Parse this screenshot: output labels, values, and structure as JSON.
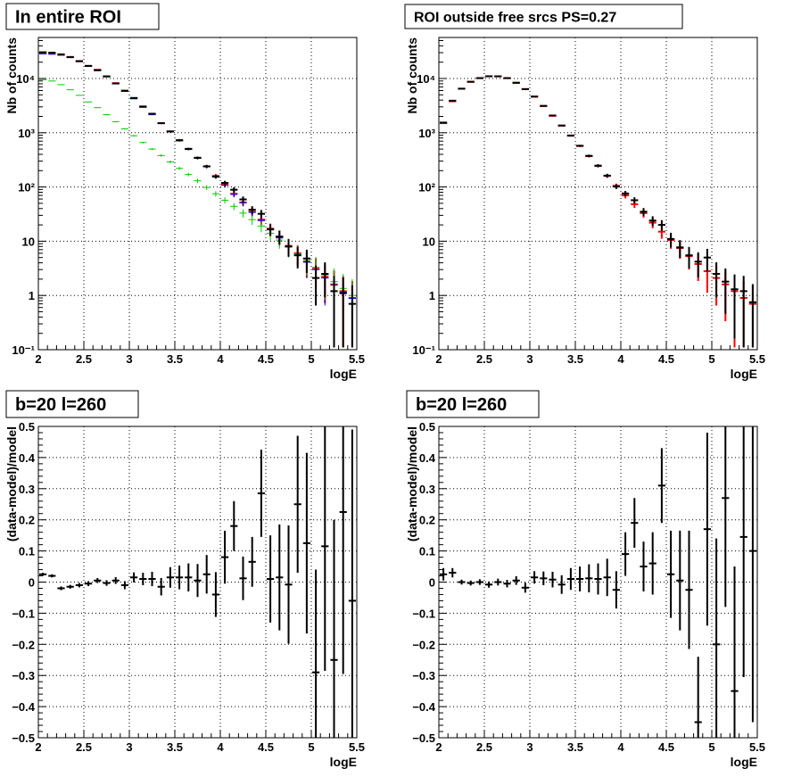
{
  "chart_data": [
    {
      "type": "scatter",
      "title": "In entire ROI",
      "xlabel": "logE",
      "ylabel": "Nb of counts",
      "xlim": [
        2,
        5.5
      ],
      "ylim": [
        0.1,
        60000
      ],
      "yscale": "log",
      "x_ticks": [
        "2",
        "2.5",
        "3",
        "3.5",
        "4",
        "4.5",
        "5",
        "5.5"
      ],
      "y_ticks": [
        "10⁻¹",
        "1",
        "10",
        "10²",
        "10³",
        "10⁴"
      ],
      "grid": true,
      "series": [
        {
          "color": "#ff0000",
          "x": [
            2.05,
            2.15,
            2.25,
            2.35,
            2.45,
            2.55,
            2.65,
            2.75,
            2.85,
            2.95,
            3.05,
            3.15,
            3.25,
            3.35,
            3.45,
            3.55,
            3.65,
            3.75,
            3.85,
            3.95,
            4.05,
            4.15,
            4.25,
            4.35,
            4.45,
            4.55,
            4.65,
            4.75,
            4.85,
            4.95,
            5.05,
            5.15,
            5.25,
            5.35,
            5.45
          ],
          "y": [
            30000,
            29000,
            28000,
            25000,
            21000,
            17000,
            14500,
            11000,
            8200,
            6000,
            4300,
            3000,
            2200,
            1500,
            1050,
            720,
            500,
            345,
            240,
            160,
            110,
            75,
            52,
            35,
            25,
            17,
            12,
            8.2,
            6,
            4.2,
            3.1,
            2.2,
            1.6,
            1.2,
            0.9
          ]
        },
        {
          "color": "#0000ff",
          "x": [
            2.05,
            2.15,
            2.25,
            2.35,
            2.45,
            2.55,
            2.65,
            2.75,
            2.85,
            2.95,
            3.05,
            3.15,
            3.25,
            3.35,
            3.45,
            3.55,
            3.65,
            3.75,
            3.85,
            3.95,
            4.05,
            4.15,
            4.25,
            4.35,
            4.45,
            4.55,
            4.65,
            4.75,
            4.85,
            4.95,
            5.05,
            5.15,
            5.25,
            5.35,
            5.45
          ],
          "y": [
            28500,
            28000,
            27000,
            24500,
            20500,
            16800,
            14000,
            10800,
            8000,
            5900,
            4250,
            2950,
            2150,
            1480,
            1040,
            710,
            495,
            340,
            235,
            158,
            108,
            73,
            51,
            34,
            24,
            16.5,
            11.5,
            8,
            5.8,
            4.1,
            3,
            2.1,
            1.55,
            1.15,
            0.88
          ]
        },
        {
          "color": "#00cc00",
          "x": [
            2.05,
            2.15,
            2.25,
            2.35,
            2.45,
            2.55,
            2.65,
            2.75,
            2.85,
            2.95,
            3.05,
            3.15,
            3.25,
            3.35,
            3.45,
            3.55,
            3.65,
            3.75,
            3.85,
            3.95,
            4.05,
            4.15,
            4.25,
            4.35,
            4.45,
            4.55,
            4.65,
            4.75,
            4.85,
            4.95,
            5.05,
            5.15,
            5.25,
            5.35,
            5.45
          ],
          "y": [
            9500,
            9000,
            7700,
            6200,
            4900,
            3700,
            2900,
            2150,
            1600,
            1180,
            880,
            660,
            500,
            380,
            290,
            220,
            170,
            130,
            98,
            75,
            57,
            44,
            33,
            25,
            19,
            14,
            10.5,
            7.8,
            5.9,
            4.4,
            3.3,
            2.4,
            1.8,
            1.35,
            1
          ]
        },
        {
          "color": "#000000",
          "x": [
            2.05,
            2.15,
            2.25,
            2.35,
            2.45,
            2.55,
            2.65,
            2.75,
            2.85,
            2.95,
            3.05,
            3.15,
            3.25,
            3.35,
            3.45,
            3.55,
            3.65,
            3.75,
            3.85,
            3.95,
            4.05,
            4.15,
            4.25,
            4.35,
            4.45,
            4.55,
            4.65,
            4.75,
            4.85,
            4.95,
            5.05,
            5.15,
            5.25,
            5.35,
            5.45
          ],
          "y": [
            30500,
            30000,
            27500,
            24700,
            20800,
            17100,
            14200,
            10900,
            8100,
            5900,
            4380,
            3050,
            2240,
            1500,
            1060,
            730,
            505,
            345,
            240,
            155,
            119,
            89,
            59,
            38,
            32,
            16.5,
            12.2,
            8,
            5.5,
            4.8,
            2.1,
            2.5,
            1.2,
            1.1,
            0.7
          ]
        }
      ]
    },
    {
      "type": "scatter",
      "title": "ROI outside free srcs PS=0.27",
      "xlabel": "logE",
      "ylabel": "Nb of counts",
      "xlim": [
        2,
        5.5
      ],
      "ylim": [
        0.1,
        60000
      ],
      "yscale": "log",
      "x_ticks": [
        "2",
        "2.5",
        "3",
        "3.5",
        "4",
        "4.5",
        "5",
        "5.5"
      ],
      "y_ticks": [
        "10⁻¹",
        "1",
        "10",
        "10²",
        "10³",
        "10⁴"
      ],
      "grid": true,
      "series": [
        {
          "color": "#ff0000",
          "x": [
            2.05,
            2.15,
            2.25,
            2.35,
            2.45,
            2.55,
            2.65,
            2.75,
            2.85,
            2.95,
            3.05,
            3.15,
            3.25,
            3.35,
            3.45,
            3.55,
            3.65,
            3.75,
            3.85,
            3.95,
            4.05,
            4.15,
            4.25,
            4.35,
            4.45,
            4.55,
            4.65,
            4.75,
            4.85,
            4.95,
            5.05,
            5.15,
            5.25,
            5.35,
            5.45
          ],
          "y": [
            1500,
            3800,
            6500,
            8700,
            10200,
            11000,
            11000,
            10200,
            8400,
            6400,
            4600,
            3100,
            2050,
            1350,
            880,
            570,
            370,
            245,
            160,
            105,
            70,
            48,
            33,
            22,
            15,
            10.5,
            7.5,
            5.3,
            3.8,
            2.8,
            2.1,
            1.6,
            1.2,
            0.9,
            0.7
          ]
        },
        {
          "color": "#000000",
          "x": [
            2.05,
            2.15,
            2.25,
            2.35,
            2.45,
            2.55,
            2.65,
            2.75,
            2.85,
            2.95,
            3.05,
            3.15,
            3.25,
            3.35,
            3.45,
            3.55,
            3.65,
            3.75,
            3.85,
            3.95,
            4.05,
            4.15,
            4.25,
            4.35,
            4.45,
            4.55,
            4.65,
            4.75,
            4.85,
            4.95,
            5.05,
            5.15,
            5.25,
            5.35,
            5.45
          ],
          "y": [
            1540,
            3900,
            6480,
            8700,
            10150,
            11000,
            10950,
            10150,
            8300,
            6350,
            4650,
            3130,
            2080,
            1360,
            890,
            575,
            375,
            247,
            162,
            102,
            76,
            57,
            35,
            24,
            20,
            11,
            7.7,
            5.5,
            4.2,
            5,
            2.5,
            1.8,
            1.3,
            1.2,
            0.75
          ]
        }
      ]
    },
    {
      "type": "scatter",
      "title": "b=20 l=260",
      "xlabel": "logE",
      "ylabel": "(data-model)/model",
      "xlim": [
        2,
        5.5
      ],
      "ylim": [
        -0.5,
        0.5
      ],
      "x_ticks": [
        "2",
        "2.5",
        "3",
        "3.5",
        "4",
        "4.5",
        "5",
        "5.5"
      ],
      "y_ticks": [
        "−0.5",
        "−0.4",
        "−0.3",
        "−0.2",
        "−0.1",
        "0",
        "0.1",
        "0.2",
        "0.3",
        "0.4",
        "0.5"
      ],
      "grid": true,
      "series": [
        {
          "color": "#000000",
          "x": [
            2.05,
            2.15,
            2.25,
            2.35,
            2.45,
            2.55,
            2.65,
            2.75,
            2.85,
            2.95,
            3.05,
            3.15,
            3.25,
            3.35,
            3.45,
            3.55,
            3.65,
            3.75,
            3.85,
            3.95,
            4.05,
            4.15,
            4.25,
            4.35,
            4.45,
            4.55,
            4.65,
            4.75,
            4.85,
            4.95,
            5.05,
            5.15,
            5.25,
            5.35,
            5.45
          ],
          "y": [
            0.025,
            0.02,
            -0.02,
            -0.015,
            -0.01,
            -0.005,
            0.005,
            -0.003,
            0.005,
            -0.01,
            0.015,
            0.01,
            0.01,
            -0.015,
            0.015,
            0.015,
            0.015,
            0.005,
            0.025,
            -0.04,
            0.08,
            0.18,
            0.012,
            0.065,
            0.285,
            0.01,
            0.015,
            -0.008,
            0.25,
            0.125,
            -0.29,
            0.115,
            -0.25,
            0.225,
            -0.06
          ],
          "err": [
            0.005,
            0.005,
            0.006,
            0.006,
            0.007,
            0.008,
            0.008,
            0.009,
            0.011,
            0.013,
            0.016,
            0.02,
            0.023,
            0.028,
            0.033,
            0.038,
            0.045,
            0.053,
            0.062,
            0.072,
            0.085,
            0.08,
            0.07,
            0.08,
            0.14,
            0.14,
            0.17,
            0.19,
            0.22,
            0.29,
            0.33,
            0.4,
            0.45,
            0.52,
            0.55
          ]
        }
      ]
    },
    {
      "type": "scatter",
      "title": "b=20 l=260",
      "xlabel": "logE",
      "ylabel": "(data-model)/model",
      "xlim": [
        2,
        5.5
      ],
      "ylim": [
        -0.5,
        0.5
      ],
      "x_ticks": [
        "2",
        "2.5",
        "3",
        "3.5",
        "4",
        "4.5",
        "5",
        "5.5"
      ],
      "y_ticks": [
        "−0.5",
        "−0.4",
        "−0.3",
        "−0.2",
        "−0.1",
        "0",
        "0.1",
        "0.2",
        "0.3",
        "0.4",
        "0.5"
      ],
      "grid": true,
      "series": [
        {
          "color": "#000000",
          "x": [
            2.05,
            2.15,
            2.25,
            2.35,
            2.45,
            2.55,
            2.65,
            2.75,
            2.85,
            2.95,
            3.05,
            3.15,
            3.25,
            3.35,
            3.45,
            3.55,
            3.65,
            3.75,
            3.85,
            3.95,
            4.05,
            4.15,
            4.25,
            4.35,
            4.45,
            4.55,
            4.65,
            4.75,
            4.85,
            4.95,
            5.05,
            5.15,
            5.25,
            5.35,
            5.45
          ],
          "y": [
            0.025,
            0.03,
            0.0,
            -0.003,
            0.0,
            -0.008,
            0.0,
            -0.005,
            0.005,
            -0.018,
            0.015,
            0.012,
            0.008,
            -0.008,
            0.01,
            0.01,
            0.012,
            0.01,
            0.015,
            -0.025,
            0.09,
            0.19,
            0.05,
            0.06,
            0.31,
            0.025,
            0.005,
            -0.025,
            -0.45,
            0.17,
            -0.2,
            0.27,
            -0.35,
            0.145,
            0.1
          ],
          "err": [
            0.02,
            0.015,
            0.008,
            0.008,
            0.009,
            0.01,
            0.011,
            0.012,
            0.014,
            0.016,
            0.02,
            0.022,
            0.025,
            0.03,
            0.035,
            0.04,
            0.045,
            0.05,
            0.06,
            0.06,
            0.07,
            0.08,
            0.08,
            0.1,
            0.12,
            0.14,
            0.16,
            0.19,
            0.21,
            0.31,
            0.34,
            0.35,
            0.4,
            0.45,
            0.55
          ]
        }
      ]
    }
  ]
}
